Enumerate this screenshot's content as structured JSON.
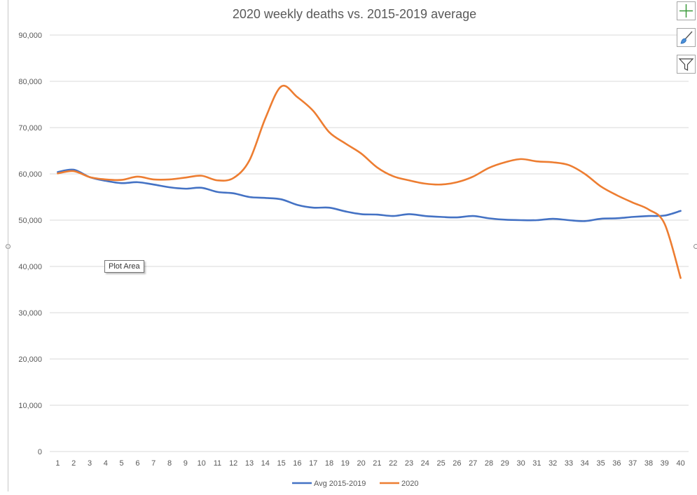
{
  "chart_data": {
    "type": "line",
    "title": "2020 weekly deaths vs. 2015-2019 average",
    "xlabel": "",
    "ylabel": "",
    "x": [
      1,
      2,
      3,
      4,
      5,
      6,
      7,
      8,
      9,
      10,
      11,
      12,
      13,
      14,
      15,
      16,
      17,
      18,
      19,
      20,
      21,
      22,
      23,
      24,
      25,
      26,
      27,
      28,
      29,
      30,
      31,
      32,
      33,
      34,
      35,
      36,
      37,
      38,
      39,
      40
    ],
    "ylim": [
      0,
      90000
    ],
    "yticks": [
      "0",
      "10,000",
      "20,000",
      "30,000",
      "40,000",
      "50,000",
      "60,000",
      "70,000",
      "80,000",
      "90,000"
    ],
    "ytick_values": [
      0,
      10000,
      20000,
      30000,
      40000,
      50000,
      60000,
      70000,
      80000,
      90000
    ],
    "grid": true,
    "legend_position": "bottom",
    "series": [
      {
        "name": "Avg 2015-2019",
        "color": "#4472c4",
        "values": [
          60400,
          60900,
          59300,
          58500,
          58000,
          58200,
          57700,
          57100,
          56800,
          57000,
          56100,
          55800,
          55000,
          54800,
          54500,
          53300,
          52700,
          52700,
          51900,
          51300,
          51200,
          50900,
          51300,
          50900,
          50700,
          50600,
          50900,
          50400,
          50100,
          50000,
          50000,
          50300,
          50000,
          49800,
          50300,
          50400,
          50700,
          50900,
          51000,
          52000
        ]
      },
      {
        "name": "2020",
        "color": "#ed7d31",
        "values": [
          60100,
          60600,
          59300,
          58800,
          58700,
          59400,
          58800,
          58800,
          59200,
          59600,
          58600,
          59100,
          62900,
          72000,
          78900,
          76600,
          73600,
          69000,
          66600,
          64400,
          61400,
          59500,
          58600,
          57900,
          57700,
          58200,
          59400,
          61300,
          62500,
          63200,
          62700,
          62500,
          61900,
          60000,
          57300,
          55400,
          53800,
          52300,
          49200,
          37500
        ]
      }
    ]
  },
  "ui": {
    "plot_area_tooltip": "Plot Area",
    "chart_elements_icon": "plus-icon",
    "chart_styles_icon": "brush-icon",
    "chart_filters_icon": "funnel-icon"
  }
}
